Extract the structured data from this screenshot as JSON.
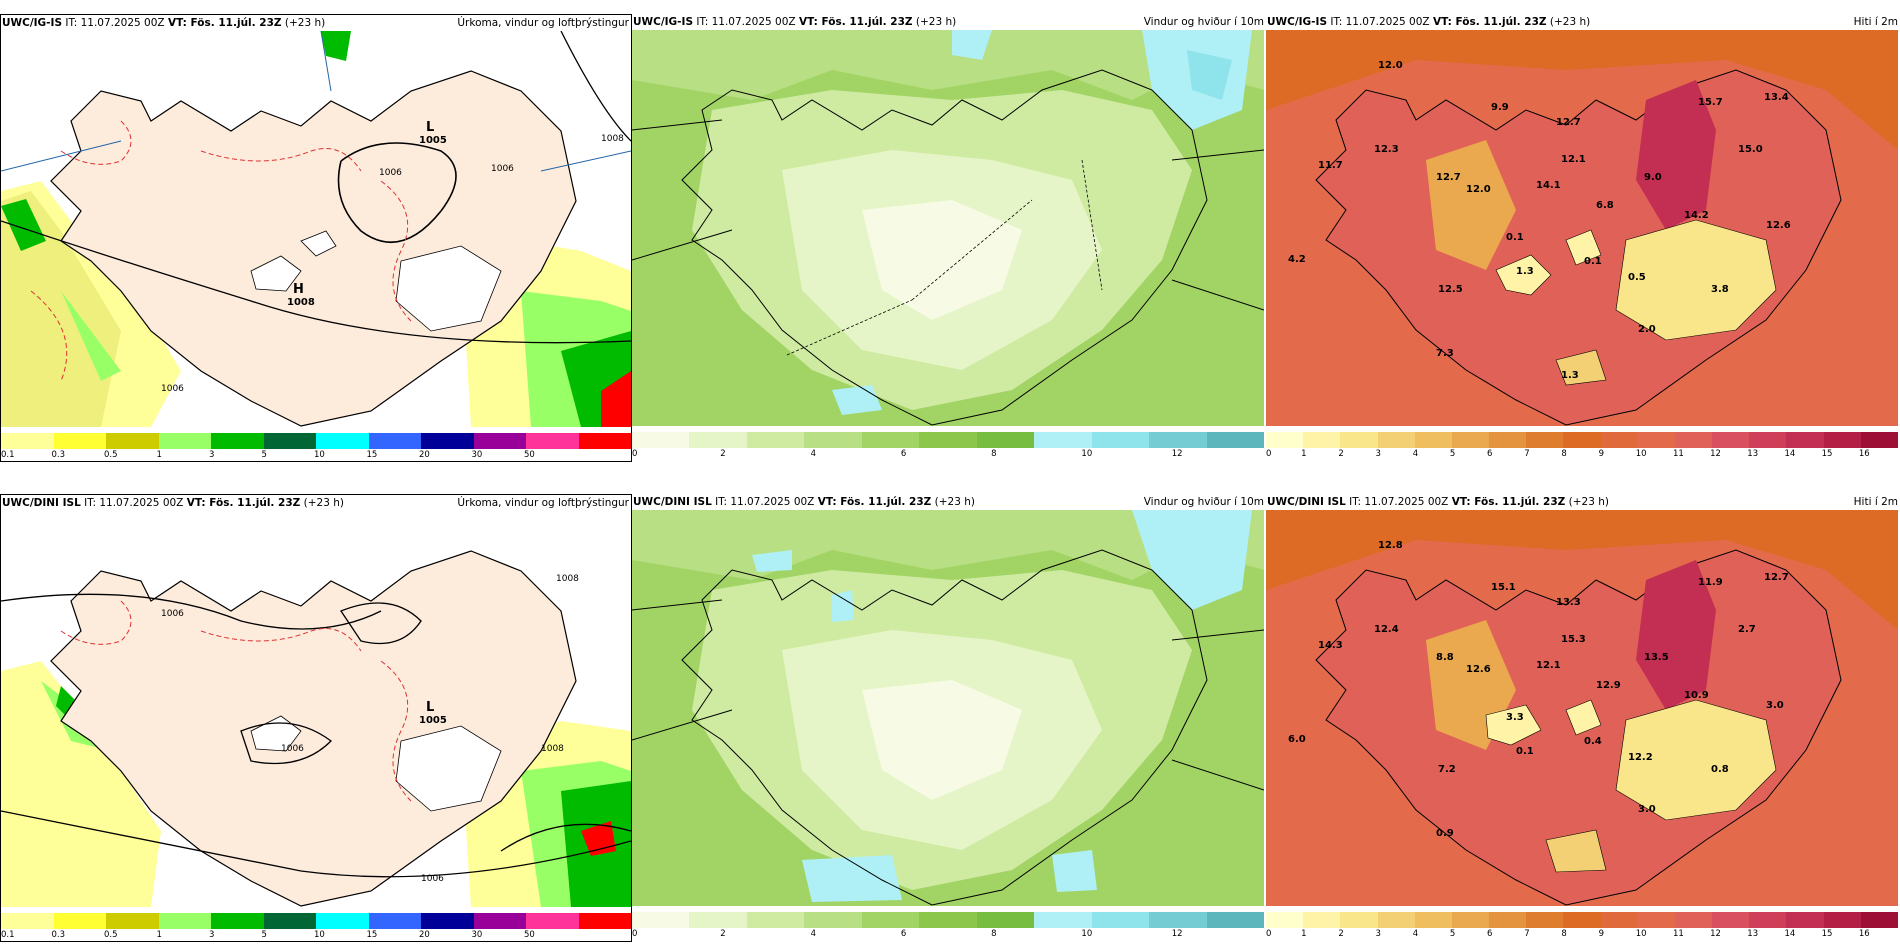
{
  "rows": [
    {
      "model": "UWC/IG-IS",
      "it_label": "IT: 11.07.2025 00Z",
      "vt_label": "VT: Fös. 11.júl. 23Z",
      "lead": "(+23 h)",
      "panels": {
        "precip": {
          "title": "Úrkoma, vindur og loftþrýstingur",
          "pressure_labels": [
            {
              "type": "L",
              "value": "1005"
            },
            {
              "type": "H",
              "value": "1008"
            }
          ],
          "isobar_labels": [
            "1006",
            "1006",
            "1008",
            "1006"
          ]
        },
        "wind": {
          "title": "Vindur og hviður í 10m"
        },
        "temp": {
          "title": "Hiti í 2m",
          "values": [
            "12.0",
            "9.9",
            "12.7",
            "15.7",
            "13.4",
            "11.7",
            "12.3",
            "12.7",
            "12.1",
            "9.0",
            "15.0",
            "12.0",
            "14.1",
            "6.8",
            "14.2",
            "12.6",
            "4.2",
            "1.3",
            "0.1",
            "0.1",
            "0.5",
            "3.8",
            "12.5",
            "2.0",
            "7.3",
            "1.3"
          ]
        }
      }
    },
    {
      "model": "UWC/DINI ISL",
      "it_label": "IT: 11.07.2025 00Z",
      "vt_label": "VT: Fös. 11.júl. 23Z",
      "lead": "(+23 h)",
      "panels": {
        "precip": {
          "title": "Úrkoma, vindur og loftþrýstingur",
          "pressure_labels": [
            {
              "type": "L",
              "value": "1005"
            }
          ],
          "isobar_labels": [
            "1006",
            "1008",
            "1006",
            "1008",
            "1006"
          ]
        },
        "wind": {
          "title": "Vindur og hviður í 10m"
        },
        "temp": {
          "title": "Hiti í 2m",
          "values": [
            "12.8",
            "15.1",
            "13.3",
            "11.9",
            "12.7",
            "14.3",
            "12.4",
            "8.8",
            "15.3",
            "13.5",
            "2.7",
            "12.6",
            "12.1",
            "12.9",
            "10.9",
            "3.0",
            "6.0",
            "0.1",
            "0.4",
            "3.3",
            "12.2",
            "0.8",
            "7.2",
            "3.0",
            "0.9"
          ]
        }
      }
    }
  ],
  "legends": {
    "precip": {
      "ticks": [
        "0.1",
        "0.3",
        "0.5",
        "1",
        "3",
        "5",
        "10",
        "15",
        "20",
        "30",
        "50"
      ],
      "colors": [
        "#ffff99",
        "#ffff33",
        "#cccc00",
        "#99ff66",
        "#00bb00",
        "#006633",
        "#00ffff",
        "#3366ff",
        "#000099",
        "#990099",
        "#ff3399",
        "#ff0000"
      ]
    },
    "wind": {
      "ticks": [
        "0",
        "2",
        "4",
        "6",
        "8",
        "10",
        "12"
      ],
      "colors": [
        "#f7fbe5",
        "#e6f5c7",
        "#cfeba2",
        "#b8df83",
        "#a2d465",
        "#8cc74b",
        "#77bd40",
        "#aef0f5",
        "#8fe3ea",
        "#75cdd3",
        "#5cb6bb"
      ]
    },
    "temp": {
      "ticks": [
        "0",
        "1",
        "2",
        "3",
        "4",
        "5",
        "6",
        "7",
        "8",
        "9",
        "10",
        "11",
        "12",
        "13",
        "14",
        "15",
        "16"
      ],
      "colors": [
        "#ffffcc",
        "#fff3a8",
        "#f9e58a",
        "#f2d073",
        "#efbf5f",
        "#eaa94e",
        "#e4933f",
        "#df7d2f",
        "#dd6b25",
        "#e06a3a",
        "#e36a4b",
        "#e06158",
        "#d95060",
        "#cf3f5a",
        "#c22f52",
        "#b31f45",
        "#9e0f35"
      ]
    }
  },
  "colors": {
    "land_precip": "#fdebdc",
    "isobar": "#000000",
    "frame_highlight": "#000000"
  }
}
